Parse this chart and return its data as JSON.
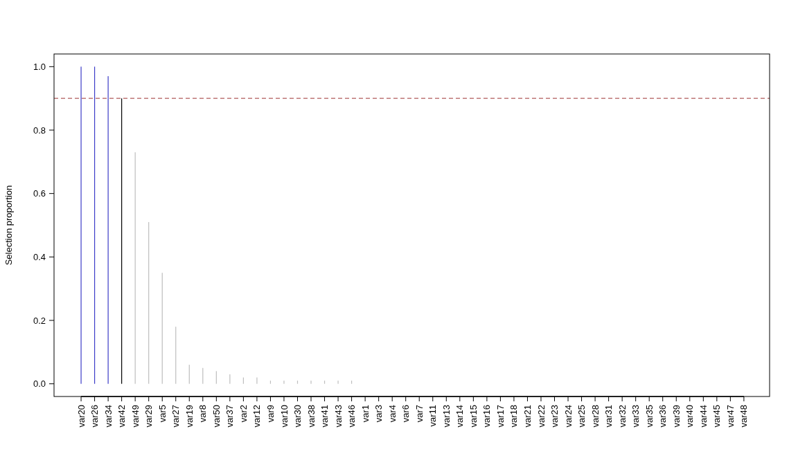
{
  "chart_data": {
    "type": "bar",
    "ylabel": "Selection proportion",
    "categories": [
      "var20",
      "var26",
      "var34",
      "var42",
      "var49",
      "var29",
      "var5",
      "var27",
      "var19",
      "var8",
      "var50",
      "var37",
      "var2",
      "var12",
      "var9",
      "var10",
      "var30",
      "var38",
      "var41",
      "var43",
      "var46",
      "var1",
      "var3",
      "var4",
      "var6",
      "var7",
      "var11",
      "var13",
      "var14",
      "var15",
      "var16",
      "var17",
      "var18",
      "var21",
      "var22",
      "var23",
      "var24",
      "var25",
      "var28",
      "var31",
      "var32",
      "var33",
      "var35",
      "var36",
      "var39",
      "var40",
      "var44",
      "var45",
      "var47",
      "var48"
    ],
    "values": [
      1,
      1,
      0.97,
      0.9,
      0.73,
      0.51,
      0.35,
      0.18,
      0.06,
      0.05,
      0.04,
      0.03,
      0.02,
      0.02,
      0.01,
      0.01,
      0.01,
      0.01,
      0.01,
      0.01,
      0.01,
      0,
      0,
      0,
      0,
      0,
      0,
      0,
      0,
      0,
      0,
      0,
      0,
      0,
      0,
      0,
      0,
      0,
      0,
      0,
      0,
      0,
      0,
      0,
      0,
      0,
      0,
      0,
      0,
      0
    ],
    "colors": [
      "#3c3cc8",
      "#3c3cc8",
      "#3c3cc8",
      "#000000",
      "#bebebe",
      "#bebebe",
      "#bebebe",
      "#bebebe",
      "#bebebe",
      "#bebebe",
      "#bebebe",
      "#bebebe",
      "#bebebe",
      "#bebebe",
      "#bebebe",
      "#bebebe",
      "#bebebe",
      "#bebebe",
      "#bebebe",
      "#bebebe",
      "#bebebe",
      "#bebebe",
      "#bebebe",
      "#bebebe",
      "#bebebe",
      "#bebebe",
      "#bebebe",
      "#bebebe",
      "#bebebe",
      "#bebebe",
      "#bebebe",
      "#bebebe",
      "#bebebe",
      "#bebebe",
      "#bebebe",
      "#bebebe",
      "#bebebe",
      "#bebebe",
      "#bebebe",
      "#bebebe",
      "#bebebe",
      "#bebebe",
      "#bebebe",
      "#bebebe",
      "#bebebe",
      "#bebebe",
      "#bebebe",
      "#bebebe",
      "#bebebe",
      "#bebebe"
    ],
    "ylim": [
      -0.04,
      1.04
    ],
    "yticks": [
      {
        "value": 0,
        "label": "0.0"
      },
      0.2,
      0.4,
      0.6,
      0.8,
      {
        "value": 1,
        "label": "1.0"
      }
    ],
    "ref_lines": [
      {
        "axis": "y",
        "value": 0.9,
        "color": "#b05a5a",
        "line_style": "dashed"
      }
    ]
  }
}
